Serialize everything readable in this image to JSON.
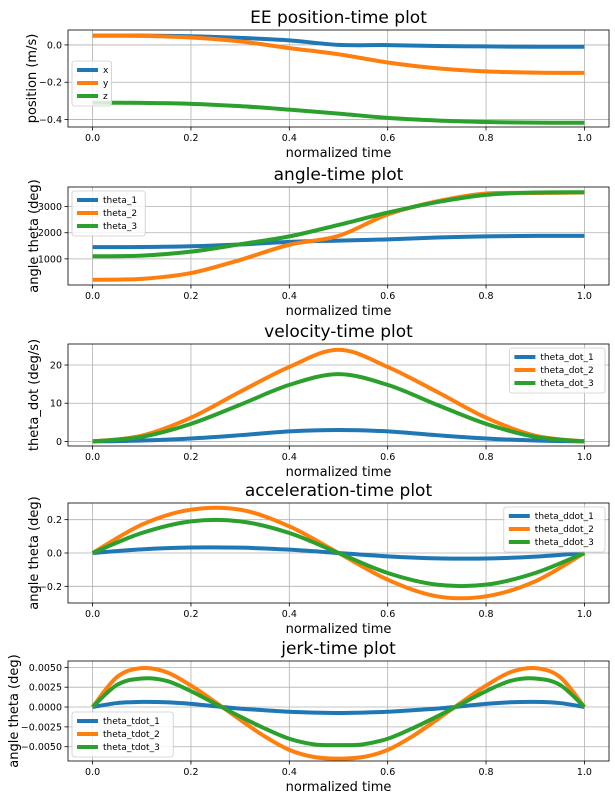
{
  "colors": {
    "blue": "#1f77b4",
    "orange": "#ff7f0e",
    "green": "#2ca02c"
  },
  "chart_data": [
    {
      "type": "line",
      "title": "EE position-time plot",
      "xlabel": "normalized time",
      "ylabel": "position (m/s)",
      "xlim": [
        -0.05,
        1.05
      ],
      "ylim": [
        -0.44,
        0.08
      ],
      "xticks": [
        0.0,
        0.2,
        0.4,
        0.6,
        0.8,
        1.0
      ],
      "xtick_labels": [
        "0.0",
        "0.2",
        "0.4",
        "0.6",
        "0.8",
        "1.0"
      ],
      "yticks": [
        -0.4,
        -0.2,
        0.0
      ],
      "ytick_labels": [
        "−0.4",
        "−0.2",
        "0.0"
      ],
      "grid": true,
      "legend": "center-left",
      "series": [
        {
          "name": "x",
          "color": "#1f77b4",
          "x": [
            0.0,
            0.1,
            0.2,
            0.3,
            0.4,
            0.5,
            0.6,
            0.7,
            0.8,
            0.9,
            1.0
          ],
          "y": [
            0.05,
            0.0496,
            0.0462,
            0.0378,
            0.0246,
            0.0,
            -0.0008,
            -0.006,
            -0.008,
            -0.0098,
            -0.01
          ]
        },
        {
          "name": "y",
          "color": "#ff7f0e",
          "x": [
            0.0,
            0.1,
            0.2,
            0.3,
            0.4,
            0.5,
            0.6,
            0.7,
            0.8,
            0.9,
            1.0
          ],
          "y": [
            0.05,
            0.0487,
            0.04,
            0.019,
            -0.017,
            -0.05,
            -0.094,
            -0.125,
            -0.142,
            -0.1487,
            -0.15
          ]
        },
        {
          "name": "z",
          "color": "#2ca02c",
          "x": [
            0.0,
            0.1,
            0.2,
            0.3,
            0.4,
            0.5,
            0.6,
            0.7,
            0.8,
            0.9,
            1.0
          ],
          "y": [
            -0.31,
            -0.3108,
            -0.3158,
            -0.3282,
            -0.347,
            -0.368,
            -0.391,
            -0.405,
            -0.413,
            -0.4167,
            -0.417
          ]
        }
      ]
    },
    {
      "type": "line",
      "title": "angle-time plot",
      "xlabel": "normalized time",
      "ylabel": "angle theta (deg)",
      "xlim": [
        -0.05,
        1.05
      ],
      "ylim": [
        0,
        3750
      ],
      "xticks": [
        0.0,
        0.2,
        0.4,
        0.6,
        0.8,
        1.0
      ],
      "xtick_labels": [
        "0.0",
        "0.2",
        "0.4",
        "0.6",
        "0.8",
        "1.0"
      ],
      "yticks": [
        1000,
        2000,
        3000
      ],
      "ytick_labels": [
        "1000",
        "2000",
        "3000"
      ],
      "grid": true,
      "legend": "upper-left",
      "series": [
        {
          "name": "theta_1",
          "color": "#1f77b4",
          "x": [
            0.0,
            0.1,
            0.2,
            0.3,
            0.4,
            0.5,
            0.6,
            0.7,
            0.8,
            0.9,
            1.0
          ],
          "y": [
            1450,
            1454,
            1482,
            1550,
            1650,
            1700,
            1745,
            1818,
            1862,
            1880,
            1880
          ]
        },
        {
          "name": "theta_2",
          "color": "#ff7f0e",
          "x": [
            0.0,
            0.1,
            0.2,
            0.3,
            0.4,
            0.5,
            0.6,
            0.7,
            0.8,
            0.9,
            1.0
          ],
          "y": [
            200,
            236,
            456,
            960,
            1540,
            1880,
            2700,
            3200,
            3500,
            3520,
            3540
          ]
        },
        {
          "name": "theta_3",
          "color": "#2ca02c",
          "x": [
            0.0,
            0.1,
            0.2,
            0.3,
            0.4,
            0.5,
            0.6,
            0.7,
            0.8,
            0.9,
            1.0
          ],
          "y": [
            1100,
            1125,
            1276,
            1560,
            1860,
            2300,
            2770,
            3170,
            3450,
            3540,
            3550
          ]
        }
      ]
    },
    {
      "type": "line",
      "title": "velocity-time plot",
      "xlabel": "normalized time",
      "ylabel": "theta_dot (deg/s)",
      "xlim": [
        -0.05,
        1.05
      ],
      "ylim": [
        -1.2,
        25.5
      ],
      "xticks": [
        0.0,
        0.2,
        0.4,
        0.6,
        0.8,
        1.0
      ],
      "xtick_labels": [
        "0.0",
        "0.2",
        "0.4",
        "0.6",
        "0.8",
        "1.0"
      ],
      "yticks": [
        0,
        10,
        20
      ],
      "ytick_labels": [
        "0",
        "10",
        "20"
      ],
      "grid": true,
      "legend": "upper-right",
      "series": [
        {
          "name": "theta_dot_1",
          "color": "#1f77b4",
          "x": [
            0.0,
            0.1,
            0.2,
            0.3,
            0.4,
            0.5,
            0.6,
            0.7,
            0.8,
            0.9,
            1.0
          ],
          "y": [
            0.0,
            0.24,
            0.77,
            1.63,
            2.63,
            3.0,
            2.63,
            1.63,
            0.77,
            0.24,
            0.0
          ]
        },
        {
          "name": "theta_dot_2",
          "color": "#ff7f0e",
          "x": [
            0.0,
            0.1,
            0.2,
            0.3,
            0.4,
            0.5,
            0.6,
            0.7,
            0.8,
            0.9,
            1.0
          ],
          "y": [
            0.0,
            1.5,
            6.2,
            13.0,
            19.5,
            24.0,
            19.5,
            13.0,
            6.2,
            1.5,
            0.0
          ]
        },
        {
          "name": "theta_dot_3",
          "color": "#2ca02c",
          "x": [
            0.0,
            0.1,
            0.2,
            0.3,
            0.4,
            0.5,
            0.6,
            0.7,
            0.8,
            0.9,
            1.0
          ],
          "y": [
            0.0,
            1.2,
            4.6,
            9.6,
            14.8,
            17.6,
            14.8,
            9.6,
            4.6,
            1.2,
            0.0
          ]
        }
      ]
    },
    {
      "type": "line",
      "title": "acceleration-time plot",
      "xlabel": "normalized time",
      "ylabel": "angle theta (deg)",
      "xlim": [
        -0.05,
        1.05
      ],
      "ylim": [
        -0.3,
        0.3
      ],
      "xticks": [
        0.0,
        0.2,
        0.4,
        0.6,
        0.8,
        1.0
      ],
      "xtick_labels": [
        "0.0",
        "0.2",
        "0.4",
        "0.6",
        "0.8",
        "1.0"
      ],
      "yticks": [
        -0.2,
        0.0,
        0.2
      ],
      "ytick_labels": [
        "−0.2",
        "0.0",
        "0.2"
      ],
      "grid": true,
      "legend": "upper-right",
      "series": [
        {
          "name": "theta_ddot_1",
          "color": "#1f77b4",
          "x": [
            0.0,
            0.1,
            0.2,
            0.3,
            0.4,
            0.5,
            0.6,
            0.7,
            0.8,
            0.9,
            1.0
          ],
          "y": [
            0.0,
            0.022,
            0.033,
            0.032,
            0.02,
            0.0,
            -0.02,
            -0.032,
            -0.033,
            -0.022,
            0.0
          ]
        },
        {
          "name": "theta_ddot_2",
          "color": "#ff7f0e",
          "x": [
            0.0,
            0.1,
            0.2,
            0.3,
            0.4,
            0.5,
            0.6,
            0.7,
            0.8,
            0.9,
            1.0
          ],
          "y": [
            0.0,
            0.17,
            0.26,
            0.26,
            0.16,
            0.0,
            -0.16,
            -0.26,
            -0.26,
            -0.17,
            0.0
          ]
        },
        {
          "name": "theta_ddot_3",
          "color": "#2ca02c",
          "x": [
            0.0,
            0.1,
            0.2,
            0.3,
            0.4,
            0.5,
            0.6,
            0.7,
            0.8,
            0.9,
            1.0
          ],
          "y": [
            0.0,
            0.12,
            0.19,
            0.19,
            0.12,
            0.0,
            -0.12,
            -0.19,
            -0.19,
            -0.12,
            0.0
          ]
        }
      ]
    },
    {
      "type": "line",
      "title": "jerk-time plot",
      "xlabel": "normalized time",
      "ylabel": "angle theta (deg)",
      "xlim": [
        -0.05,
        1.05
      ],
      "ylim": [
        -0.0068,
        0.0058
      ],
      "xticks": [
        0.0,
        0.2,
        0.4,
        0.6,
        0.8,
        1.0
      ],
      "xtick_labels": [
        "0.0",
        "0.2",
        "0.4",
        "0.6",
        "0.8",
        "1.0"
      ],
      "yticks": [
        -0.005,
        -0.0025,
        0.0,
        0.0025,
        0.005
      ],
      "ytick_labels": [
        "−0.0050",
        "−0.0025",
        "0.0000",
        "0.0025",
        "0.0050"
      ],
      "grid": true,
      "legend": "lower-left",
      "series": [
        {
          "name": "theta_tdot_1",
          "color": "#1f77b4",
          "x": [
            0.0,
            0.05,
            0.1,
            0.15,
            0.2,
            0.25,
            0.3,
            0.35,
            0.4,
            0.45,
            0.5,
            0.55,
            0.6,
            0.65,
            0.7,
            0.75,
            0.8,
            0.85,
            0.9,
            0.95,
            1.0
          ],
          "y": [
            0.0,
            0.0005,
            0.00065,
            0.0006,
            0.0004,
            0.0001,
            -0.0002,
            -0.0004,
            -0.0006,
            -0.0007,
            -0.00075,
            -0.0007,
            -0.0006,
            -0.0004,
            -0.0002,
            0.0001,
            0.0004,
            0.0006,
            0.00065,
            0.0005,
            0.0
          ]
        },
        {
          "name": "theta_tdot_2",
          "color": "#ff7f0e",
          "x": [
            0.0,
            0.05,
            0.1,
            0.15,
            0.2,
            0.25,
            0.3,
            0.35,
            0.4,
            0.45,
            0.5,
            0.55,
            0.6,
            0.65,
            0.7,
            0.75,
            0.8,
            0.85,
            0.9,
            0.95,
            1.0
          ],
          "y": [
            0.0,
            0.0038,
            0.0049,
            0.0044,
            0.0027,
            0.0006,
            -0.0016,
            -0.0037,
            -0.0054,
            -0.0063,
            -0.0065,
            -0.0063,
            -0.0054,
            -0.0037,
            -0.0016,
            0.0006,
            0.0027,
            0.0044,
            0.0049,
            0.0038,
            0.0
          ]
        },
        {
          "name": "theta_tdot_3",
          "color": "#2ca02c",
          "x": [
            0.0,
            0.05,
            0.1,
            0.15,
            0.2,
            0.25,
            0.3,
            0.35,
            0.4,
            0.45,
            0.5,
            0.55,
            0.6,
            0.65,
            0.7,
            0.75,
            0.8,
            0.85,
            0.9,
            0.95,
            1.0
          ],
          "y": [
            0.0,
            0.0028,
            0.0036,
            0.0033,
            0.002,
            0.0004,
            -0.0012,
            -0.0027,
            -0.004,
            -0.0047,
            -0.0048,
            -0.0047,
            -0.004,
            -0.0027,
            -0.0012,
            0.0004,
            0.002,
            0.0033,
            0.0036,
            0.0028,
            0.0
          ]
        }
      ]
    }
  ]
}
